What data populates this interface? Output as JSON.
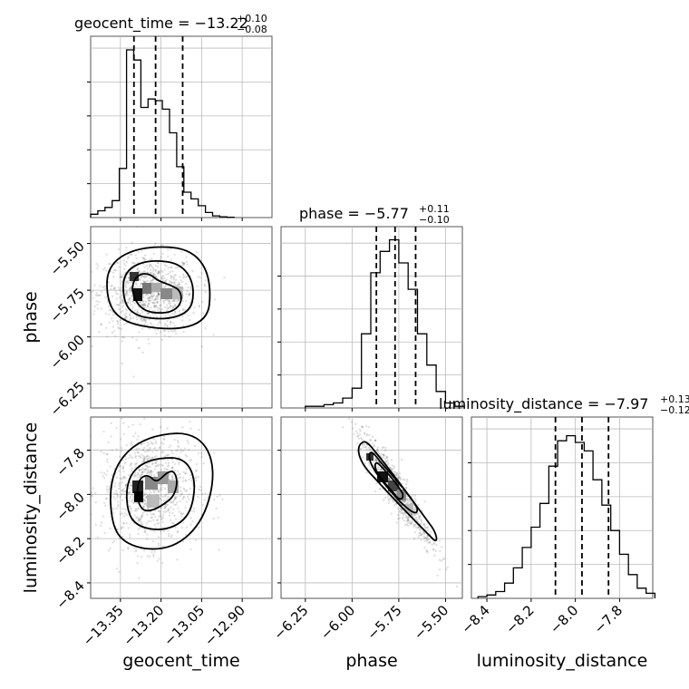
{
  "chart_data": {
    "type": "corner",
    "grid": true,
    "parameters": [
      {
        "name": "geocent_time",
        "title": {
          "prefix": "geocent_time = ",
          "median": "−13.22",
          "plus": "+0.10",
          "minus": "−0.08"
        },
        "range": [
          -13.46,
          -12.79
        ],
        "ticks": [
          -13.35,
          -13.2,
          -13.05,
          -12.9
        ],
        "tick_labels": [
          "−13.35",
          "−13.20",
          "−13.05",
          "−12.90"
        ],
        "quantiles": [
          -13.3,
          -13.22,
          -13.12
        ],
        "hist": {
          "bin_edges": [
            -13.46,
            -13.4335,
            -13.407,
            -13.3805,
            -13.354,
            -13.3275,
            -13.301,
            -13.2745,
            -13.248,
            -13.2215,
            -13.195,
            -13.1685,
            -13.142,
            -13.1155,
            -13.089,
            -13.0625,
            -13.036,
            -13.0095,
            -12.983,
            -12.9565,
            -12.93
          ],
          "counts": [
            0.02,
            0.04,
            0.06,
            0.1,
            0.29,
            0.99,
            0.93,
            0.65,
            0.7,
            0.69,
            0.64,
            0.5,
            0.3,
            0.15,
            0.11,
            0.07,
            0.03,
            0.01,
            0.005,
            0.002
          ],
          "ylim": [
            0,
            1.07
          ]
        }
      },
      {
        "name": "phase",
        "title": {
          "prefix": "phase = ",
          "median": "−5.77",
          "plus": "+0.11",
          "minus": "−0.10"
        },
        "range": [
          -6.38,
          -5.41
        ],
        "ticks": [
          -6.25,
          -6.0,
          -5.75,
          -5.5
        ],
        "tick_labels": [
          "−6.25",
          "−6.00",
          "−5.75",
          "−5.50"
        ],
        "quantiles": [
          -5.87,
          -5.77,
          -5.66
        ],
        "hist": {
          "bin_edges": [
            -6.25,
            -6.2,
            -6.15,
            -6.1,
            -6.05,
            -6.0,
            -5.95,
            -5.9,
            -5.85,
            -5.8,
            -5.75,
            -5.7,
            -5.65,
            -5.6,
            -5.55,
            -5.5,
            -5.45,
            -5.4
          ],
          "counts": [
            0.01,
            0.01,
            0.02,
            0.03,
            0.06,
            0.12,
            0.45,
            0.82,
            0.95,
            1.02,
            0.88,
            0.72,
            0.45,
            0.26,
            0.1,
            0.03,
            0.01
          ],
          "ylim": [
            0,
            1.1
          ]
        }
      },
      {
        "name": "luminosity_distance",
        "title": {
          "prefix": "luminosity_distance = ",
          "median": "−7.97",
          "plus": "+0.13",
          "minus": "−0.12"
        },
        "range": [
          -8.47,
          -7.65
        ],
        "ticks": [
          -8.4,
          -8.2,
          -8.0,
          -7.8
        ],
        "tick_labels": [
          "−8.4",
          "−8.2",
          "−8.0",
          "−7.8"
        ],
        "quantiles": [
          -8.09,
          -7.97,
          -7.85
        ],
        "hist": {
          "bin_edges": [
            -8.44,
            -8.4,
            -8.36,
            -8.32,
            -8.28,
            -8.24,
            -8.2,
            -8.16,
            -8.12,
            -8.08,
            -8.04,
            -8.0,
            -7.96,
            -7.92,
            -7.88,
            -7.84,
            -7.8,
            -7.76,
            -7.72,
            -7.68,
            -7.64
          ],
          "counts": [
            0.01,
            0.02,
            0.04,
            0.09,
            0.18,
            0.3,
            0.42,
            0.56,
            0.78,
            0.93,
            0.96,
            0.92,
            0.87,
            0.7,
            0.55,
            0.4,
            0.26,
            0.14,
            0.06,
            0.03
          ],
          "ylim": [
            0,
            1.07
          ]
        }
      }
    ],
    "scatter_2d": [
      {
        "x_param": "geocent_time",
        "y_param": "phase",
        "x_tick_labels_shown": false,
        "y_tick_labels": [
          "−5.50",
          "−5.75",
          "−6.00",
          "−6.25"
        ],
        "ylabel": "phase",
        "density_center": [
          -13.25,
          -5.77
        ],
        "hotspots": [
          [
            -13.3,
            -5.77
          ],
          [
            -13.19,
            -5.79
          ]
        ]
      },
      {
        "x_param": "geocent_time",
        "y_param": "luminosity_distance",
        "ylabel": "luminosity_distance",
        "xlabel": "geocent_time",
        "density_center": [
          -13.24,
          -7.97
        ],
        "hotspots": [
          [
            -13.3,
            -7.99
          ],
          [
            -13.18,
            -7.93
          ]
        ]
      },
      {
        "x_param": "phase",
        "y_param": "luminosity_distance",
        "xlabel": "phase",
        "density_center": [
          -5.77,
          -7.97
        ],
        "correlation": "strong negative"
      }
    ],
    "diag_xlabel_last": "luminosity_distance"
  }
}
